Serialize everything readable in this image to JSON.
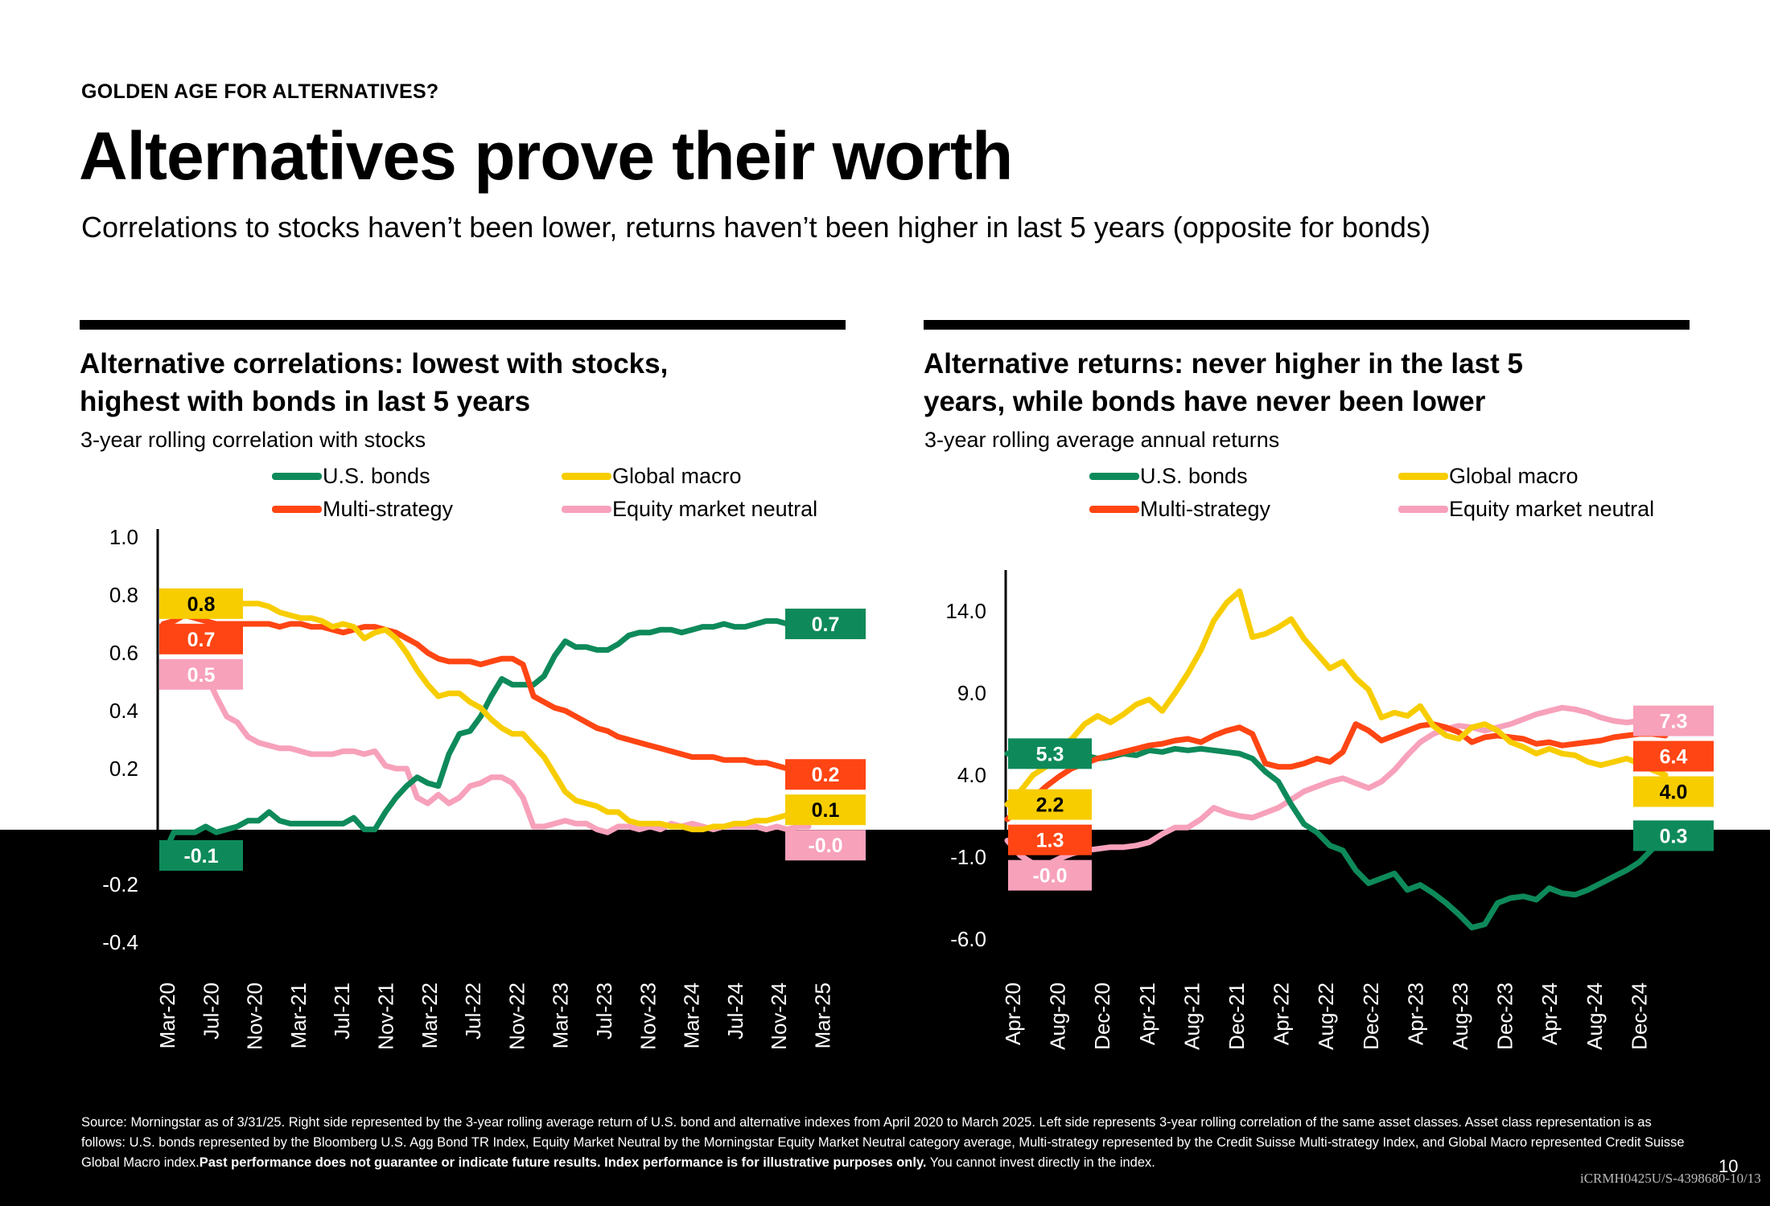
{
  "header": {
    "eyebrow": "GOLDEN AGE FOR ALTERNATIVES?",
    "title": "Alternatives prove their worth",
    "subtitle": "Correlations to stocks haven’t been lower, returns haven’t been higher in last 5 years (opposite for bonds)"
  },
  "left_panel": {
    "title_line1": "Alternative correlations: lowest with stocks,",
    "title_line2": "highest with bonds in last 5 years",
    "subtitle": "3-year rolling correlation with stocks"
  },
  "right_panel": {
    "title_line1": "Alternative returns: never higher in the last 5",
    "title_line2": "years, while bonds have never been lower",
    "subtitle": "3-year rolling average annual returns"
  },
  "legend": {
    "bonds": "U.S. bonds",
    "macro": "Global macro",
    "multi": "Multi-strategy",
    "emn": "Equity market neutral"
  },
  "colors": {
    "bonds": "#0e8a5a",
    "macro": "#f7cd00",
    "multi": "#ff4513",
    "emn": "#f7a1bb"
  },
  "chart_data": [
    {
      "type": "line",
      "title": "Alternative correlations: lowest with stocks, highest with bonds in last 5 years",
      "subtitle": "3-year rolling correlation with stocks",
      "x_ticks": [
        "Mar-20",
        "Jul-20",
        "Nov-20",
        "Mar-21",
        "Jul-21",
        "Nov-21",
        "Mar-22",
        "Jul-22",
        "Nov-22",
        "Mar-23",
        "Jul-23",
        "Nov-23",
        "Mar-24",
        "Jul-24",
        "Nov-24",
        "Mar-25"
      ],
      "y_ticks": [
        "1.0",
        "0.8",
        "0.6",
        "0.4",
        "0.2",
        "",
        "-0.2",
        "-0.4"
      ],
      "ylim": [
        -0.4,
        1.0
      ],
      "x_range": [
        "Mar-20",
        "Mar-25"
      ],
      "grid": false,
      "legend_position": "top",
      "series": [
        {
          "name": "U.S. bonds",
          "key": "bonds",
          "values": [
            -0.1,
            -0.02,
            -0.02,
            -0.02,
            0.0,
            -0.02,
            -0.01,
            0.0,
            0.02,
            0.02,
            0.05,
            0.02,
            0.01,
            0.01,
            0.01,
            0.01,
            0.01,
            0.01,
            0.03,
            -0.01,
            -0.01,
            0.05,
            0.1,
            0.14,
            0.17,
            0.15,
            0.14,
            0.25,
            0.32,
            0.33,
            0.38,
            0.45,
            0.51,
            0.49,
            0.49,
            0.49,
            0.52,
            0.59,
            0.64,
            0.62,
            0.62,
            0.61,
            0.61,
            0.63,
            0.66,
            0.67,
            0.67,
            0.68,
            0.68,
            0.67,
            0.68,
            0.69,
            0.69,
            0.7,
            0.69,
            0.69,
            0.7,
            0.71,
            0.71,
            0.7,
            0.7,
            0.7
          ],
          "label": "0.7"
        },
        {
          "name": "Global macro",
          "key": "macro",
          "values": [
            0.77,
            0.78,
            0.77,
            0.77,
            0.78,
            0.77,
            0.79,
            0.77,
            0.77,
            0.77,
            0.76,
            0.74,
            0.73,
            0.72,
            0.72,
            0.71,
            0.69,
            0.7,
            0.69,
            0.65,
            0.67,
            0.68,
            0.65,
            0.6,
            0.54,
            0.49,
            0.45,
            0.46,
            0.46,
            0.43,
            0.41,
            0.37,
            0.34,
            0.32,
            0.32,
            0.28,
            0.24,
            0.18,
            0.12,
            0.09,
            0.08,
            0.07,
            0.05,
            0.05,
            0.02,
            0.01,
            0.01,
            0.01,
            0.0,
            0.0,
            -0.01,
            -0.01,
            0.0,
            0.0,
            0.01,
            0.01,
            0.02,
            0.02,
            0.03,
            0.04,
            0.05,
            0.06
          ],
          "label": "0.1"
        },
        {
          "name": "Multi-strategy",
          "key": "multi",
          "values": [
            0.7,
            0.71,
            0.73,
            0.72,
            0.71,
            0.7,
            0.7,
            0.7,
            0.7,
            0.7,
            0.7,
            0.69,
            0.7,
            0.7,
            0.69,
            0.69,
            0.68,
            0.67,
            0.68,
            0.69,
            0.69,
            0.68,
            0.67,
            0.65,
            0.63,
            0.6,
            0.58,
            0.57,
            0.57,
            0.57,
            0.56,
            0.57,
            0.58,
            0.58,
            0.56,
            0.45,
            0.43,
            0.41,
            0.4,
            0.38,
            0.36,
            0.34,
            0.33,
            0.31,
            0.3,
            0.29,
            0.28,
            0.27,
            0.26,
            0.25,
            0.24,
            0.24,
            0.24,
            0.23,
            0.23,
            0.23,
            0.22,
            0.22,
            0.21,
            0.2,
            0.19,
            0.18
          ],
          "label": "0.2"
        },
        {
          "name": "Equity market neutral",
          "key": "emn",
          "values": [
            0.54,
            0.55,
            0.54,
            0.53,
            0.53,
            0.45,
            0.38,
            0.36,
            0.31,
            0.29,
            0.28,
            0.27,
            0.27,
            0.26,
            0.25,
            0.25,
            0.25,
            0.26,
            0.26,
            0.25,
            0.26,
            0.21,
            0.2,
            0.2,
            0.1,
            0.08,
            0.11,
            0.08,
            0.1,
            0.14,
            0.15,
            0.17,
            0.17,
            0.15,
            0.1,
            0.0,
            0.0,
            0.01,
            0.02,
            0.01,
            0.01,
            -0.01,
            -0.02,
            0.0,
            0.0,
            -0.01,
            0.0,
            -0.01,
            0.01,
            0.0,
            0.01,
            0.0,
            -0.01,
            0.0,
            0.0,
            0.0,
            0.0,
            -0.01,
            0.0,
            -0.01,
            0.0,
            0.0
          ],
          "label": "-0.0"
        }
      ],
      "start_labels": [
        {
          "key": "macro",
          "text": "0.8"
        },
        {
          "key": "multi",
          "text": "0.7"
        },
        {
          "key": "emn",
          "text": "0.5"
        },
        {
          "key": "bonds",
          "text": "-0.1"
        }
      ]
    },
    {
      "type": "line",
      "title": "Alternative returns: never higher in the last 5 years, while bonds have never been lower",
      "subtitle": "3-year rolling average annual returns",
      "x_ticks": [
        "Apr-20",
        "Aug-20",
        "Dec-20",
        "Apr-21",
        "Aug-21",
        "Dec-21",
        "Apr-22",
        "Aug-22",
        "Dec-22",
        "Apr-23",
        "Aug-23",
        "Dec-23",
        "Apr-24",
        "Aug-24",
        "Dec-24"
      ],
      "y_ticks": [
        "14.0",
        "9.0",
        "4.0",
        "-1.0",
        "-6.0"
      ],
      "ylim": [
        -6.0,
        16.0
      ],
      "x_range": [
        "Apr-20",
        "Mar-25"
      ],
      "grid": false,
      "legend_position": "top",
      "series": [
        {
          "name": "U.S. bonds",
          "key": "bonds",
          "values": [
            5.3,
            5.4,
            5.2,
            5.3,
            5.5,
            5.4,
            5.2,
            5.0,
            5.1,
            5.3,
            5.2,
            5.5,
            5.4,
            5.6,
            5.5,
            5.6,
            5.5,
            5.4,
            5.3,
            5.0,
            4.2,
            3.6,
            2.2,
            1.0,
            0.5,
            -0.3,
            -0.6,
            -1.8,
            -2.6,
            -2.3,
            -2.0,
            -3.0,
            -2.7,
            -3.2,
            -3.8,
            -4.5,
            -5.3,
            -5.1,
            -3.8,
            -3.5,
            -3.4,
            -3.6,
            -2.9,
            -3.2,
            -3.3,
            -3.0,
            -2.6,
            -2.2,
            -1.8,
            -1.3,
            -0.5,
            0.3
          ],
          "label": "0.3"
        },
        {
          "name": "Global macro",
          "key": "macro",
          "values": [
            2.2,
            3.0,
            4.0,
            4.5,
            5.6,
            6.2,
            7.1,
            7.6,
            7.2,
            7.7,
            8.3,
            8.6,
            7.9,
            9.0,
            10.2,
            11.6,
            13.4,
            14.5,
            15.2,
            12.4,
            12.6,
            13.0,
            13.5,
            12.3,
            11.4,
            10.5,
            10.9,
            9.9,
            9.2,
            7.5,
            7.8,
            7.6,
            8.2,
            7.0,
            6.4,
            6.2,
            6.9,
            7.1,
            6.7,
            6.0,
            5.7,
            5.3,
            5.6,
            5.3,
            5.2,
            4.8,
            4.6,
            4.8,
            5.0,
            4.7,
            4.3,
            4.0
          ],
          "label": "4.0"
        },
        {
          "name": "Multi-strategy",
          "key": "multi",
          "values": [
            1.3,
            2.0,
            2.6,
            3.3,
            3.9,
            4.4,
            4.7,
            5.0,
            5.2,
            5.4,
            5.6,
            5.8,
            5.9,
            6.1,
            6.2,
            6.0,
            6.4,
            6.7,
            6.9,
            6.5,
            4.7,
            4.5,
            4.5,
            4.7,
            5.0,
            4.8,
            5.4,
            7.1,
            6.7,
            6.1,
            6.4,
            6.7,
            7.0,
            7.1,
            6.9,
            6.6,
            6.0,
            6.3,
            6.4,
            6.3,
            6.2,
            5.9,
            6.0,
            5.8,
            5.9,
            6.0,
            6.1,
            6.3,
            6.4,
            6.5,
            6.5,
            6.4
          ],
          "label": "6.4"
        },
        {
          "name": "Equity market neutral",
          "key": "emn",
          "values": [
            -0.0,
            -0.9,
            -1.4,
            -1.5,
            -1.1,
            -0.8,
            -0.6,
            -0.5,
            -0.4,
            -0.4,
            -0.3,
            -0.1,
            0.4,
            0.8,
            0.8,
            1.3,
            2.0,
            1.7,
            1.5,
            1.4,
            1.7,
            2.0,
            2.5,
            3.0,
            3.3,
            3.6,
            3.8,
            3.5,
            3.2,
            3.6,
            4.3,
            5.2,
            6.0,
            6.5,
            6.8,
            7.0,
            6.9,
            6.7,
            6.9,
            7.1,
            7.4,
            7.7,
            7.9,
            8.1,
            8.0,
            7.8,
            7.5,
            7.3,
            7.2,
            7.3,
            7.4,
            7.3
          ],
          "label": "7.3"
        }
      ],
      "start_labels": [
        {
          "key": "bonds",
          "text": "5.3"
        },
        {
          "key": "macro",
          "text": "2.2"
        },
        {
          "key": "multi",
          "text": "1.3"
        },
        {
          "key": "emn",
          "text": "-0.0"
        }
      ]
    }
  ],
  "footer": {
    "source": "Source:  Morningstar as of 3/31/25. Right side represented by the 3-year rolling average return of U.S. bond and alternative indexes from April 2020 to March 2025. Left side represents 3-year rolling correlation of the same asset classes. Asset class representation is as follows: U.S. bonds represented by the Bloomberg U.S. Agg Bond TR Index,  Equity Market Neutral by the Morningstar Equity Market Neutral category average, Multi-strategy represented by the Credit Suisse Multi-strategy Index, and Global Macro represented Credit Suisse Global Macro index.",
    "disclaimer_bold": "Past performance does not guarantee or indicate future results. Index performance is for illustrative purposes only.",
    "disclaimer_tail": " You cannot invest directly in the index.",
    "page_number": "10",
    "doc_id": "iCRMH0425U/S-4398680-10/13"
  }
}
